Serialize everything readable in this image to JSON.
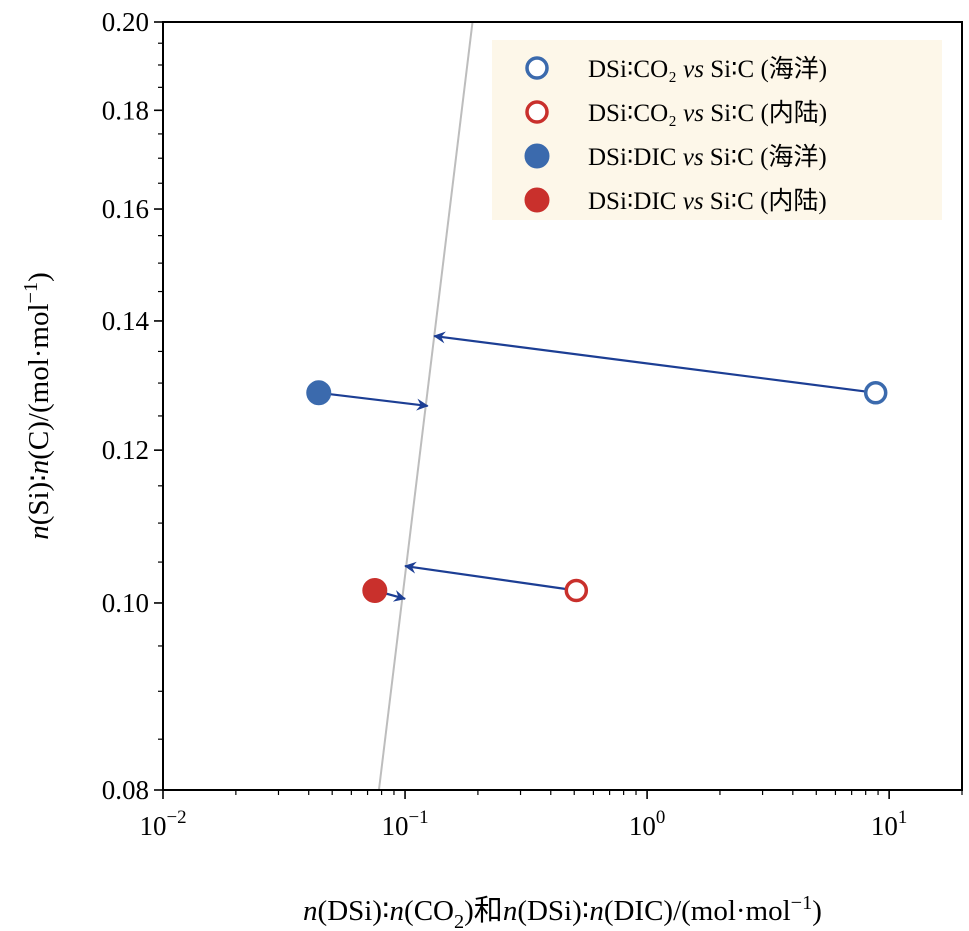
{
  "chart_data": {
    "type": "scatter",
    "xscale": "log",
    "yscale": "log",
    "xlim": [
      0.01,
      20
    ],
    "ylim": [
      0.08,
      0.2
    ],
    "xlabel": {
      "parts": [
        {
          "t": "n",
          "i": true
        },
        {
          "t": "(DSi)∶"
        },
        {
          "t": "n",
          "i": true
        },
        {
          "t": "(CO"
        },
        {
          "t": "2",
          "sub": true
        },
        {
          "t": ")和"
        },
        {
          "t": "n",
          "i": true
        },
        {
          "t": "(DSi)∶"
        },
        {
          "t": "n",
          "i": true
        },
        {
          "t": "(DIC)/(mol·mol"
        },
        {
          "t": "−1",
          "sup": true
        },
        {
          "t": ")"
        }
      ]
    },
    "ylabel": {
      "parts": [
        {
          "t": "n",
          "i": true
        },
        {
          "t": "(Si)∶"
        },
        {
          "t": "n",
          "i": true
        },
        {
          "t": "(C)/(mol·mol"
        },
        {
          "t": "−1",
          "sup": true
        },
        {
          "t": ")"
        }
      ]
    },
    "xticks": [
      {
        "value": 0.01,
        "base": "10",
        "exp": "−2"
      },
      {
        "value": 0.1,
        "base": "10",
        "exp": "−1"
      },
      {
        "value": 1,
        "base": "10",
        "exp": "0"
      },
      {
        "value": 10,
        "base": "10",
        "exp": "1"
      }
    ],
    "yticks": [
      {
        "value": 0.08,
        "label": "0.08"
      },
      {
        "value": 0.1,
        "label": "0.10"
      },
      {
        "value": 0.12,
        "label": "0.12"
      },
      {
        "value": 0.14,
        "label": "0.14"
      },
      {
        "value": 0.16,
        "label": "0.16"
      },
      {
        "value": 0.18,
        "label": "0.18"
      },
      {
        "value": 0.2,
        "label": "0.20"
      }
    ],
    "reference_line": {
      "color": "#bdbdbd",
      "points": [
        [
          0.078,
          0.08
        ],
        [
          0.19,
          0.2
        ]
      ]
    },
    "series": [
      {
        "name": "DSi∶CO₂ vs Si∶C (海洋)",
        "legend_parts": [
          {
            "t": "DSi∶CO₂ "
          },
          {
            "t": "vs",
            "i": true
          },
          {
            "t": " Si∶C (海洋)"
          }
        ],
        "marker": "open",
        "color": "#3b6aad",
        "x": [
          8.8
        ],
        "y": [
          0.1285
        ]
      },
      {
        "name": "DSi∶CO₂ vs Si∶C (内陆)",
        "legend_parts": [
          {
            "t": "DSi∶CO₂ "
          },
          {
            "t": "vs",
            "i": true
          },
          {
            "t": " Si∶C (内陆)"
          }
        ],
        "marker": "open",
        "color": "#c9302c",
        "x": [
          0.51
        ],
        "y": [
          0.1015
        ]
      },
      {
        "name": "DSi∶DIC vs Si∶C (海洋)",
        "legend_parts": [
          {
            "t": "DSi∶DIC "
          },
          {
            "t": "vs",
            "i": true
          },
          {
            "t": " Si∶C (海洋)"
          }
        ],
        "marker": "filled",
        "color": "#3b6aad",
        "x": [
          0.044
        ],
        "y": [
          0.1285
        ]
      },
      {
        "name": "DSi∶DIC vs Si∶C (内陆)",
        "legend_parts": [
          {
            "t": "DSi∶DIC "
          },
          {
            "t": "vs",
            "i": true
          },
          {
            "t": " Si∶C (内陆)"
          }
        ],
        "marker": "filled",
        "color": "#c9302c",
        "x": [
          0.075
        ],
        "y": [
          0.1015
        ]
      }
    ],
    "arrows": [
      {
        "color": "#1c3e94",
        "from": [
          8.8,
          0.1285
        ],
        "to": [
          0.132,
          0.1375
        ]
      },
      {
        "color": "#1c3e94",
        "from": [
          0.044,
          0.1285
        ],
        "to": [
          0.124,
          0.1265
        ]
      },
      {
        "color": "#1c3e94",
        "from": [
          0.51,
          0.1015
        ],
        "to": [
          0.1,
          0.1045
        ]
      },
      {
        "color": "#1c3e94",
        "from": [
          0.075,
          0.1015
        ],
        "to": [
          0.1,
          0.1005
        ]
      }
    ],
    "legend": {
      "position": "top-right",
      "background": "#fdf7e9"
    },
    "grid": false
  }
}
